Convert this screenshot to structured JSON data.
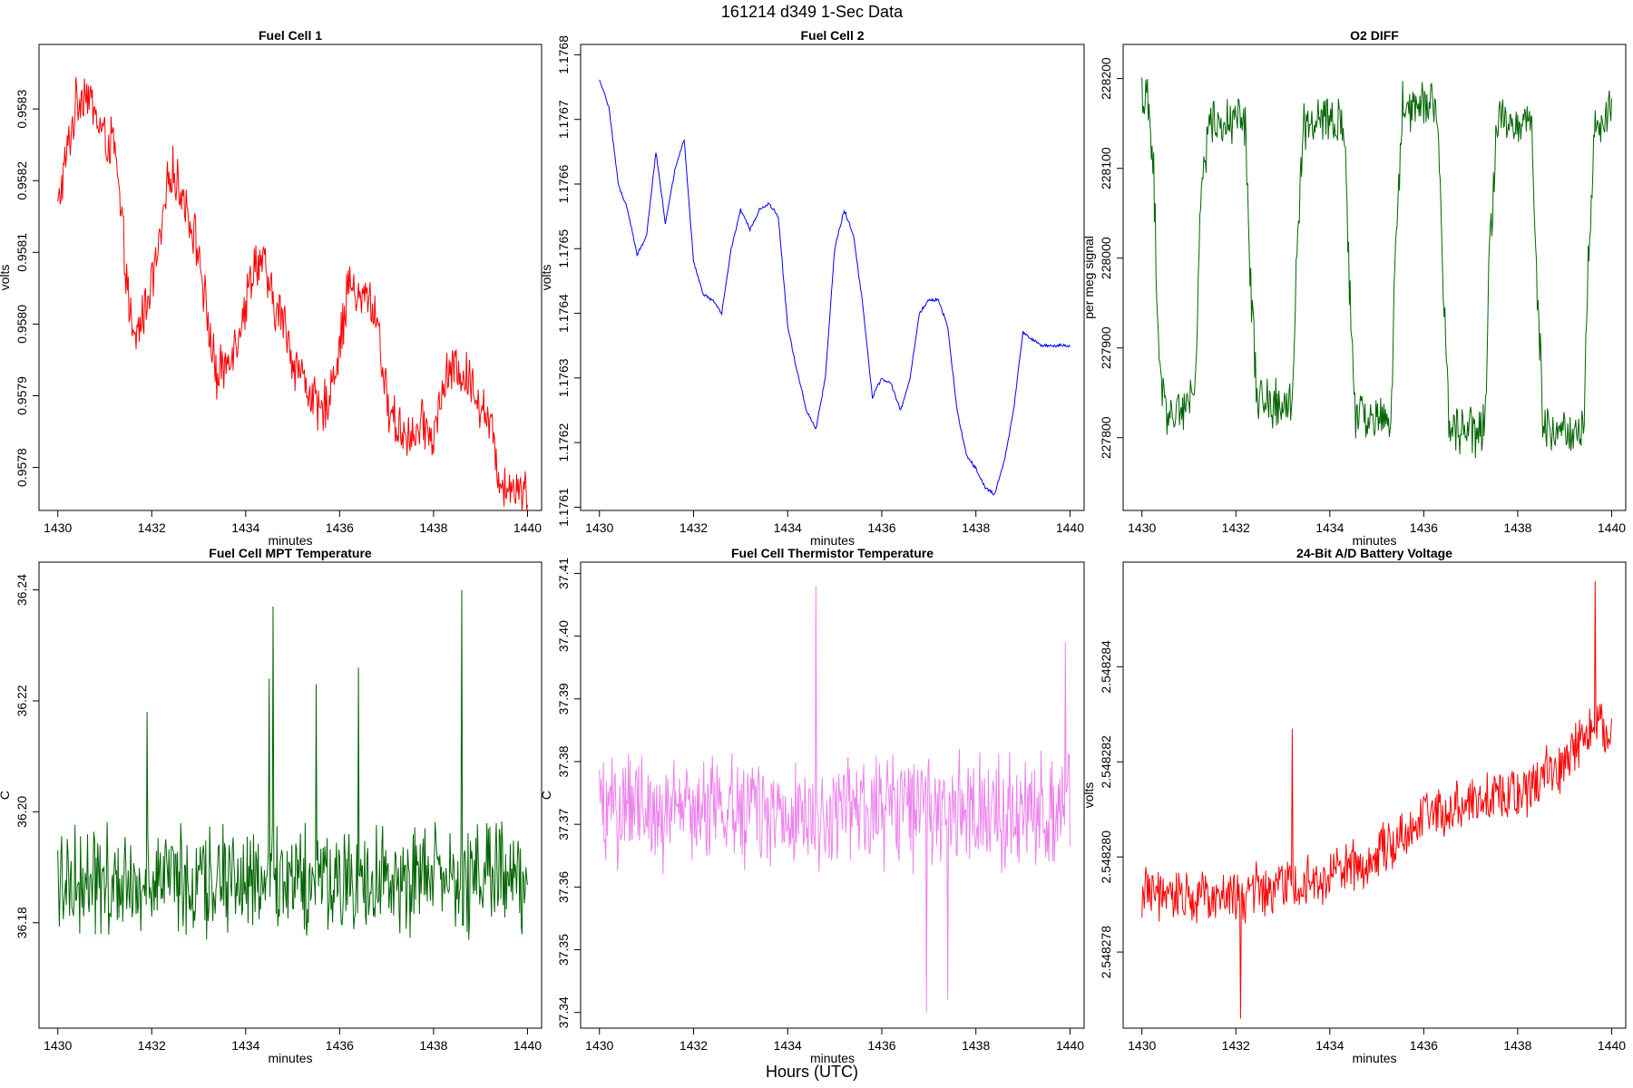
{
  "figure": {
    "suptitle": "161214   d349   1-Sec Data",
    "x_label": "Hours (UTC)"
  },
  "chart_data": [
    {
      "type": "line",
      "title": "Fuel Cell 1",
      "xlabel": "minutes",
      "ylabel": "volts",
      "color": "#ff0000",
      "xlim": [
        1429.6,
        1440.3
      ],
      "ylim": [
        0.95774,
        0.95839
      ],
      "xticks": [
        "1430",
        "1432",
        "1434",
        "1436",
        "1438",
        "1440"
      ],
      "yticks": [
        "0.9578",
        "0.9579",
        "0.9580",
        "0.9581",
        "0.9582",
        "0.9583"
      ],
      "yticks_at": [
        0.9578,
        0.9579,
        0.958,
        0.9581,
        0.9582,
        0.9583
      ],
      "series": [
        {
          "x": [
            1430,
            1430.2,
            1430.4,
            1430.6,
            1430.8,
            1431,
            1431.2,
            1431.4,
            1431.6,
            1431.8,
            1432,
            1432.2,
            1432.4,
            1432.6,
            1432.8,
            1433,
            1433.2,
            1433.4,
            1433.6,
            1433.8,
            1434,
            1434.2,
            1434.4,
            1434.6,
            1434.8,
            1435,
            1435.2,
            1435.4,
            1435.6,
            1435.8,
            1436,
            1436.2,
            1436.4,
            1436.6,
            1436.8,
            1437,
            1437.2,
            1437.4,
            1437.6,
            1437.8,
            1438,
            1438.2,
            1438.4,
            1438.6,
            1438.8,
            1439,
            1439.2,
            1439.4,
            1439.6,
            1439.8,
            1440
          ],
          "y": [
            0.95816,
            0.95824,
            0.95831,
            0.95833,
            0.95829,
            0.95826,
            0.95825,
            0.95811,
            0.95797,
            0.95801,
            0.95806,
            0.95812,
            0.95822,
            0.95819,
            0.95815,
            0.9581,
            0.958,
            0.95792,
            0.95795,
            0.95798,
            0.95803,
            0.95809,
            0.95808,
            0.95802,
            0.95801,
            0.95795,
            0.95793,
            0.9579,
            0.95787,
            0.95791,
            0.95797,
            0.95806,
            0.95803,
            0.95804,
            0.95801,
            0.95789,
            0.95786,
            0.95785,
            0.95784,
            0.95786,
            0.95784,
            0.95791,
            0.95794,
            0.95793,
            0.95792,
            0.95789,
            0.95786,
            0.95779,
            0.95777,
            0.95778,
            0.95776
          ],
          "noise": 3.5e-05
        }
      ]
    },
    {
      "type": "line",
      "title": "Fuel Cell 2",
      "xlabel": "minutes",
      "ylabel": "volts",
      "color": "#0000ff",
      "xlim": [
        1429.6,
        1440.3
      ],
      "ylim": [
        1.176095,
        1.176816
      ],
      "xticks": [
        "1430",
        "1432",
        "1434",
        "1436",
        "1438",
        "1440"
      ],
      "yticks": [
        "1.1761",
        "1.1762",
        "1.1763",
        "1.1764",
        "1.1765",
        "1.1766",
        "1.1767",
        "1.1768"
      ],
      "yticks_at": [
        1.1761,
        1.1762,
        1.1763,
        1.1764,
        1.1765,
        1.1766,
        1.1767,
        1.1768
      ],
      "series": [
        {
          "x": [
            1430,
            1430.2,
            1430.4,
            1430.6,
            1430.8,
            1431,
            1431.2,
            1431.4,
            1431.6,
            1431.8,
            1432,
            1432.2,
            1432.4,
            1432.6,
            1432.8,
            1433,
            1433.2,
            1433.4,
            1433.6,
            1433.8,
            1434,
            1434.2,
            1434.4,
            1434.6,
            1434.8,
            1435,
            1435.2,
            1435.4,
            1435.6,
            1435.8,
            1436,
            1436.2,
            1436.4,
            1436.6,
            1436.8,
            1437,
            1437.2,
            1437.4,
            1437.6,
            1437.8,
            1438,
            1438.2,
            1438.4,
            1438.6,
            1438.8,
            1439,
            1439.2,
            1439.4,
            1439.6,
            1439.8,
            1440
          ],
          "y": [
            1.17676,
            1.17672,
            1.1766,
            1.17656,
            1.17649,
            1.17652,
            1.17665,
            1.17654,
            1.17662,
            1.17667,
            1.17648,
            1.17643,
            1.17642,
            1.1764,
            1.1765,
            1.17656,
            1.17653,
            1.17656,
            1.17657,
            1.17655,
            1.17638,
            1.17631,
            1.17625,
            1.17622,
            1.1763,
            1.1765,
            1.17656,
            1.17652,
            1.17641,
            1.17627,
            1.1763,
            1.17629,
            1.17625,
            1.1763,
            1.1764,
            1.17642,
            1.17642,
            1.17638,
            1.17625,
            1.17618,
            1.17616,
            1.17613,
            1.17612,
            1.17617,
            1.17625,
            1.17637,
            1.17636,
            1.17635,
            1.17635,
            1.17635,
            1.17635
          ],
          "noise": 2.5e-06
        }
      ]
    },
    {
      "type": "line",
      "title": "O2 DIFF",
      "xlabel": "minutes",
      "ylabel": "per meg signal",
      "color": "#006400",
      "xlim": [
        1429.6,
        1440.3
      ],
      "ylim": [
        227719,
        228238
      ],
      "xticks": [
        "1430",
        "1432",
        "1434",
        "1436",
        "1438",
        "1440"
      ],
      "yticks": [
        "227800",
        "227900",
        "228000",
        "228100",
        "228200"
      ],
      "yticks_at": [
        227800,
        227900,
        228000,
        228100,
        228200
      ],
      "series": [
        {
          "x": [
            1430,
            1430.1,
            1430.25,
            1430.35,
            1430.5,
            1431,
            1431.15,
            1431.25,
            1431.4,
            1432.2,
            1432.3,
            1432.45,
            1433.2,
            1433.3,
            1433.45,
            1434.3,
            1434.4,
            1434.55,
            1435.3,
            1435.4,
            1435.55,
            1436.3,
            1436.4,
            1436.55,
            1437.3,
            1437.4,
            1437.55,
            1438.3,
            1438.4,
            1438.55,
            1439.4,
            1439.5,
            1439.65,
            1440
          ],
          "y": [
            228180,
            228180,
            228100,
            227900,
            227830,
            227830,
            227880,
            228050,
            228150,
            228150,
            227990,
            227840,
            227840,
            228000,
            228150,
            228150,
            227990,
            227820,
            227820,
            228000,
            228170,
            228170,
            227990,
            227810,
            227810,
            228000,
            228150,
            228150,
            227990,
            227810,
            227810,
            228000,
            228150,
            228170
          ],
          "noise": 28
        }
      ]
    },
    {
      "type": "line",
      "title": "Fuel Cell MPT Temperature",
      "xlabel": "minutes",
      "ylabel": "C",
      "color": "#006400",
      "xlim": [
        1429.6,
        1440.3
      ],
      "ylim": [
        36.161,
        36.245
      ],
      "xticks": [
        "1430",
        "1432",
        "1434",
        "1436",
        "1438",
        "1440"
      ],
      "yticks": [
        "36.18",
        "36.20",
        "36.22",
        "36.24"
      ],
      "yticks_at": [
        36.18,
        36.2,
        36.22,
        36.24
      ],
      "series": [
        {
          "x": [
            1430,
            1440
          ],
          "y": [
            36.188,
            36.188
          ],
          "noise": 0.0095
        }
      ],
      "spikes": [
        [
          1434.58,
          36.237
        ],
        [
          1438.6,
          36.24
        ],
        [
          1435.5,
          36.223
        ],
        [
          1436.4,
          36.226
        ],
        [
          1434.5,
          36.224
        ],
        [
          1431.9,
          36.218
        ]
      ]
    },
    {
      "type": "line",
      "title": "Fuel Cell Thermistor Temperature",
      "xlabel": "minutes",
      "ylabel": "C",
      "color": "#ee82ee",
      "xlim": [
        1429.6,
        1440.3
      ],
      "ylim": [
        37.3375,
        37.4118
      ],
      "xticks": [
        "1430",
        "1432",
        "1434",
        "1436",
        "1438",
        "1440"
      ],
      "yticks": [
        "37.34",
        "37.35",
        "37.36",
        "37.37",
        "37.38",
        "37.39",
        "37.40",
        "37.41"
      ],
      "yticks_at": [
        37.34,
        37.35,
        37.36,
        37.37,
        37.38,
        37.39,
        37.4,
        37.41
      ],
      "series": [
        {
          "x": [
            1430,
            1440
          ],
          "y": [
            37.372,
            37.372
          ],
          "noise": 0.0085
        }
      ],
      "spikes": [
        [
          1434.6,
          37.408
        ],
        [
          1436.95,
          37.34
        ],
        [
          1437.4,
          37.342
        ],
        [
          1439.9,
          37.399
        ]
      ]
    },
    {
      "type": "line",
      "title": "24-Bit A/D Battery Voltage",
      "xlabel": "minutes",
      "ylabel": "volts",
      "color": "#ff0000",
      "xlim": [
        1429.6,
        1440.3
      ],
      "ylim": [
        2.5482764,
        2.5482862
      ],
      "xticks": [
        "1430",
        "1432",
        "1434",
        "1436",
        "1438",
        "1440"
      ],
      "yticks": [
        "2.548278",
        "2.548280",
        "2.548282",
        "2.548284"
      ],
      "yticks_at": [
        2.548278,
        2.54828,
        2.548282,
        2.548284
      ],
      "series": [
        {
          "x": [
            1430,
            1432,
            1434,
            1435,
            1436,
            1437,
            1438,
            1439,
            1439.6,
            1440
          ],
          "y": [
            2.5482792,
            2.5482792,
            2.5482796,
            2.54828,
            2.5482808,
            2.5482812,
            2.5482813,
            2.548282,
            2.5482828,
            2.5482826
          ],
          "noise": 5.5e-07
        }
      ],
      "spikes": [
        [
          1439.65,
          2.5482858
        ],
        [
          1433.2,
          2.5482827
        ],
        [
          1432.1,
          2.5482766
        ]
      ]
    }
  ]
}
